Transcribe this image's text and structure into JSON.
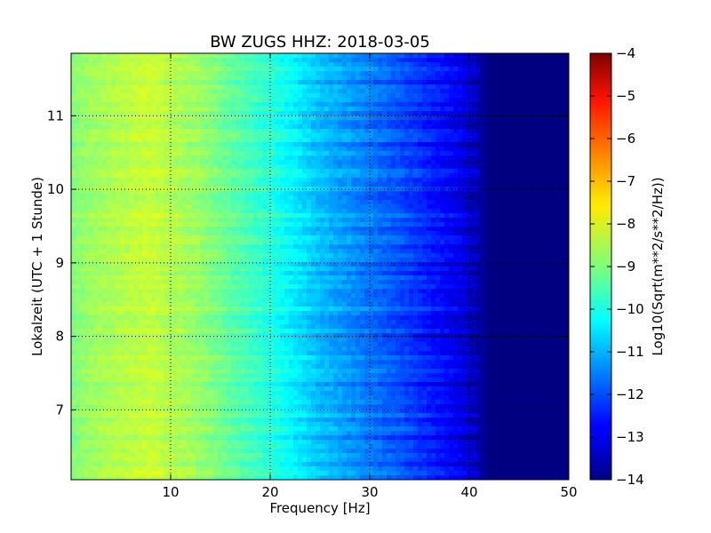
{
  "chart_data": {
    "type": "heatmap",
    "title": "BW ZUGS HHZ: 2018-03-05",
    "xlabel": "Frequency [Hz]",
    "ylabel": "Lokalzeit (UTC + 1 Stunde)",
    "xlim": [
      0,
      50
    ],
    "ylim": [
      11.85,
      6.05
    ],
    "x_ticks": [
      10,
      20,
      30,
      40,
      50
    ],
    "y_ticks": [
      7,
      8,
      9,
      10,
      11
    ],
    "grid": true,
    "colorbar": {
      "label": "Log10(Sqrt(m**2/s**2/Hz))",
      "range": [
        -14,
        -4
      ],
      "ticks": [
        -4,
        -5,
        -6,
        -7,
        -8,
        -9,
        -10,
        -11,
        -12,
        -13,
        -14
      ],
      "colormap": "jet"
    },
    "spectrum_profile": {
      "frequency_hz": [
        0,
        2,
        5,
        8,
        10,
        13,
        16,
        20,
        23,
        25,
        28,
        30,
        33,
        35,
        38,
        40,
        41,
        42,
        45,
        50
      ],
      "log10_amplitude": [
        -9.0,
        -8.7,
        -8.5,
        -8.3,
        -8.5,
        -8.8,
        -9.3,
        -9.9,
        -10.5,
        -10.9,
        -11.3,
        -11.6,
        -12.0,
        -12.3,
        -12.8,
        -13.2,
        -13.6,
        -14.0,
        -14.0,
        -14.0
      ]
    }
  }
}
